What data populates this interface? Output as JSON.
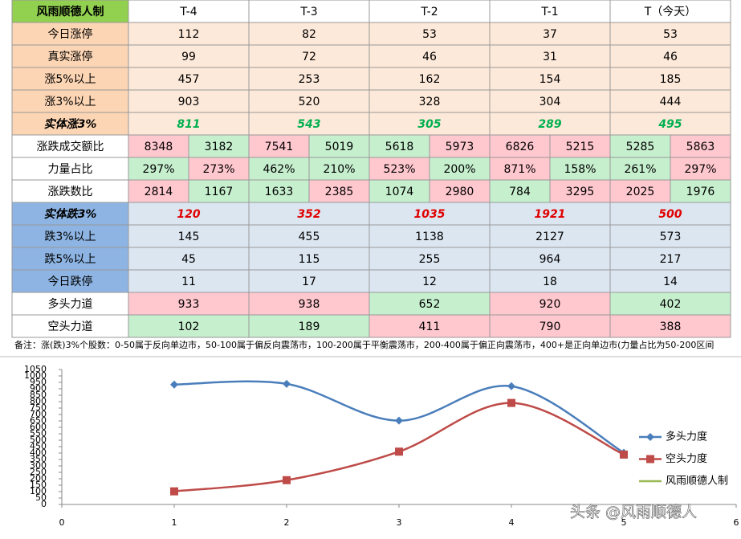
{
  "table": {
    "header": [
      "风雨顺德人制",
      "T-4",
      "T-3",
      "T-2",
      "T-1",
      "T（今天）"
    ],
    "header_fill": "#92d050",
    "rows": [
      {
        "label": "今日涨停",
        "label_fill": "#fcd5b4",
        "cells": [
          {
            "text": "112",
            "color": "#fde9d9"
          },
          {
            "text": "82",
            "color": "#fde9d9"
          },
          {
            "text": "53",
            "color": "#fde9d9"
          },
          {
            "text": "37",
            "color": "#fde9d9"
          },
          {
            "text": "53",
            "color": "#fde9d9"
          }
        ]
      },
      {
        "label": "真实涨停",
        "label_fill": "#fcd5b4",
        "cells": [
          {
            "text": "99",
            "color": "#fde9d9"
          },
          {
            "text": "72",
            "color": "#fde9d9"
          },
          {
            "text": "46",
            "color": "#fde9d9"
          },
          {
            "text": "31",
            "color": "#fde9d9"
          },
          {
            "text": "46",
            "color": "#fde9d9"
          }
        ]
      },
      {
        "label": "涨5%以上",
        "label_fill": "#fcd5b4",
        "cells": [
          {
            "text": "457",
            "color": "#fde9d9"
          },
          {
            "text": "253",
            "color": "#fde9d9"
          },
          {
            "text": "162",
            "color": "#fde9d9"
          },
          {
            "text": "154",
            "color": "#fde9d9"
          },
          {
            "text": "185",
            "color": "#fde9d9"
          }
        ]
      },
      {
        "label": "涨3%以上",
        "label_fill": "#fcd5b4",
        "cells": [
          {
            "text": "903",
            "color": "#fde9d9"
          },
          {
            "text": "520",
            "color": "#fde9d9"
          },
          {
            "text": "328",
            "color": "#fde9d9"
          },
          {
            "text": "304",
            "color": "#fde9d9"
          },
          {
            "text": "444",
            "color": "#fde9d9"
          }
        ]
      },
      {
        "label": "实体涨3%",
        "label_fill": "#fcd5b4",
        "text_color": "#00b050",
        "cells": [
          {
            "text": "811",
            "color": "#fde9d9"
          },
          {
            "text": "543",
            "color": "#fde9d9"
          },
          {
            "text": "305",
            "color": "#fde9d9"
          },
          {
            "text": "289",
            "color": "#fde9d9"
          },
          {
            "text": "495",
            "color": "#fde9d9"
          }
        ]
      },
      {
        "label": "涨跌成交额比",
        "label_fill": "#ffffff",
        "cells": [
          {
            "text": "8348",
            "color": "#ffc7ce"
          },
          {
            "text": "3182",
            "color": "#c6efce"
          },
          {
            "text": "7541",
            "color": "#ffc7ce"
          },
          {
            "text": "5019",
            "color": "#c6efce"
          },
          {
            "text": "5618",
            "color": "#c6efce"
          },
          {
            "text": "5973",
            "color": "#ffc7ce"
          },
          {
            "text": "6826",
            "color": "#ffc7ce"
          },
          {
            "text": "5215",
            "color": "#ffc7ce"
          },
          {
            "text": "5285",
            "color": "#c6efce"
          },
          {
            "text": "5863",
            "color": "#ffc7ce"
          }
        ]
      },
      {
        "label": "力量占比",
        "label_fill": "#ffffff",
        "cells": [
          {
            "text": "297%",
            "color": "#c6efce"
          },
          {
            "text": "273%",
            "color": "#ffc7ce"
          },
          {
            "text": "462%",
            "color": "#c6efce"
          },
          {
            "text": "210%",
            "color": "#c6efce"
          },
          {
            "text": "523%",
            "color": "#ffc7ce"
          },
          {
            "text": "200%",
            "color": "#c6efce"
          },
          {
            "text": "871%",
            "color": "#ffc7ce"
          },
          {
            "text": "158%",
            "color": "#c6efce"
          },
          {
            "text": "261%",
            "color": "#c6efce"
          },
          {
            "text": "297%",
            "color": "#ffc7ce"
          }
        ]
      },
      {
        "label": "涨跌数比",
        "label_fill": "#ffffff",
        "cells": [
          {
            "text": "2814",
            "color": "#ffc7ce"
          },
          {
            "text": "1167",
            "color": "#c6efce"
          },
          {
            "text": "1633",
            "color": "#c6efce"
          },
          {
            "text": "2385",
            "color": "#ffc7ce"
          },
          {
            "text": "1074",
            "color": "#c6efce"
          },
          {
            "text": "2980",
            "color": "#ffc7ce"
          },
          {
            "text": "784",
            "color": "#c6efce"
          },
          {
            "text": "3295",
            "color": "#ffc7ce"
          },
          {
            "text": "2025",
            "color": "#ffc7ce"
          },
          {
            "text": "1976",
            "color": "#c6efce"
          }
        ]
      },
      {
        "label": "实体跌3%",
        "label_fill": "#8db4e2",
        "text_color": "#e00000",
        "cells": [
          {
            "text": "120",
            "color": "#dce6f1"
          },
          {
            "text": "352",
            "color": "#dce6f1"
          },
          {
            "text": "1035",
            "color": "#dce6f1"
          },
          {
            "text": "1921",
            "color": "#dce6f1"
          },
          {
            "text": "500",
            "color": "#dce6f1"
          }
        ]
      },
      {
        "label": "跌3%以上",
        "label_fill": "#8db4e2",
        "cells": [
          {
            "text": "145",
            "color": "#dce6f1"
          },
          {
            "text": "455",
            "color": "#dce6f1"
          },
          {
            "text": "1138",
            "color": "#dce6f1"
          },
          {
            "text": "2127",
            "color": "#dce6f1"
          },
          {
            "text": "573",
            "color": "#dce6f1"
          }
        ]
      },
      {
        "label": "跌5%以上",
        "label_fill": "#8db4e2",
        "cells": [
          {
            "text": "45",
            "color": "#dce6f1"
          },
          {
            "text": "115",
            "color": "#dce6f1"
          },
          {
            "text": "255",
            "color": "#dce6f1"
          },
          {
            "text": "964",
            "color": "#dce6f1"
          },
          {
            "text": "217",
            "color": "#dce6f1"
          }
        ]
      },
      {
        "label": "今日跌停",
        "label_fill": "#8db4e2",
        "cells": [
          {
            "text": "11",
            "color": "#dce6f1"
          },
          {
            "text": "17",
            "color": "#dce6f1"
          },
          {
            "text": "12",
            "color": "#dce6f1"
          },
          {
            "text": "18",
            "color": "#dce6f1"
          },
          {
            "text": "14",
            "color": "#dce6f1"
          }
        ]
      },
      {
        "label": "多头力道",
        "label_fill": "#ffffff",
        "cells": [
          {
            "text": "933",
            "color": "#ffc7ce"
          },
          {
            "text": "938",
            "color": "#ffc7ce"
          },
          {
            "text": "652",
            "color": "#c6efce"
          },
          {
            "text": "920",
            "color": "#ffc7ce"
          },
          {
            "text": "402",
            "color": "#c6efce"
          }
        ]
      },
      {
        "label": "空头力道",
        "label_fill": "#ffffff",
        "cells": [
          {
            "text": "102",
            "color": "#c6efce"
          },
          {
            "text": "189",
            "color": "#c6efce"
          },
          {
            "text": "411",
            "color": "#ffc7ce"
          },
          {
            "text": "790",
            "color": "#ffc7ce"
          },
          {
            "text": "388",
            "color": "#ffc7ce"
          }
        ]
      }
    ],
    "note": "备注：涨(跌)3%个股数：0-50属于反向单边市，50-100属于偏反向震荡市，100-200属于平衡震荡市，200-400属于偏正向震荡市，400+是正向单边市(力量占比为50-200区间"
  },
  "chart_data": {
    "type": "line",
    "x": [
      1,
      2,
      3,
      4,
      5
    ],
    "series": [
      {
        "name": "多头力度",
        "color": "#4a7ebb",
        "values": [
          933,
          938,
          652,
          920,
          402
        ]
      },
      {
        "name": "空头力度",
        "color": "#be4b48",
        "values": [
          102,
          189,
          411,
          790,
          388
        ]
      },
      {
        "name": "风雨顺德人制",
        "color": "#98b954",
        "values": [
          null,
          null,
          null,
          null,
          null
        ]
      }
    ],
    "xlim": [
      0,
      6
    ],
    "xticks": [
      0,
      1,
      2,
      3,
      4,
      5,
      6
    ],
    "ylim": [
      0,
      1050
    ],
    "yticks": [
      0,
      50,
      100,
      150,
      200,
      250,
      300,
      350,
      400,
      450,
      500,
      550,
      600,
      650,
      700,
      750,
      800,
      850,
      900,
      950,
      1000,
      1050
    ]
  },
  "watermark": "头条 @风雨顺德人"
}
